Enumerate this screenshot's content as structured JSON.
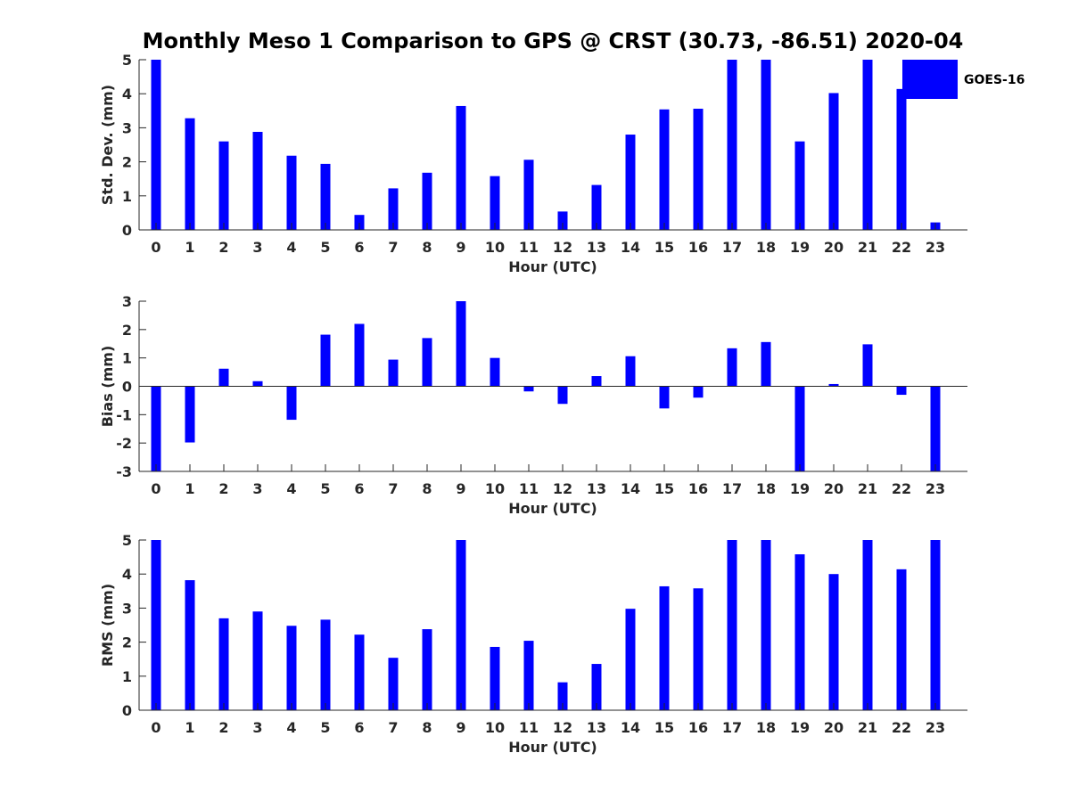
{
  "title": "Monthly Meso 1 Comparison to GPS @ CRST (30.73, -86.51) 2020-04",
  "legend": {
    "label": "GOES-16",
    "color": "#0000ff",
    "placement": "top-right"
  },
  "chart_data": [
    {
      "type": "bar",
      "xlabel": "Hour (UTC)",
      "ylabel": "Std. Dev. (mm)",
      "ylim": [
        0,
        5
      ],
      "yticks": [
        "0",
        "1",
        "2",
        "3",
        "4",
        "5"
      ],
      "categories": [
        "0",
        "1",
        "2",
        "3",
        "4",
        "5",
        "6",
        "7",
        "8",
        "9",
        "10",
        "11",
        "12",
        "13",
        "14",
        "15",
        "16",
        "17",
        "18",
        "19",
        "20",
        "21",
        "22",
        "23"
      ],
      "values": [
        5,
        3.28,
        2.6,
        2.88,
        2.18,
        1.94,
        0.44,
        1.22,
        1.68,
        3.64,
        1.58,
        2.06,
        0.54,
        1.32,
        2.8,
        3.54,
        3.56,
        5,
        5,
        2.6,
        4.02,
        5,
        4.14,
        0.22
      ],
      "color": "#0000ff"
    },
    {
      "type": "bar",
      "xlabel": "Hour (UTC)",
      "ylabel": "Bias (mm)",
      "ylim": [
        -3,
        3
      ],
      "yticks": [
        "-3",
        "-2",
        "-1",
        "0",
        "1",
        "2",
        "3"
      ],
      "categories": [
        "0",
        "1",
        "2",
        "3",
        "4",
        "5",
        "6",
        "7",
        "8",
        "9",
        "10",
        "11",
        "12",
        "13",
        "14",
        "15",
        "16",
        "17",
        "18",
        "19",
        "20",
        "21",
        "22",
        "23"
      ],
      "values": [
        -3,
        -1.98,
        0.62,
        0.18,
        -1.18,
        1.82,
        2.2,
        0.94,
        1.7,
        3,
        1,
        -0.18,
        -0.62,
        0.36,
        1.06,
        -0.78,
        -0.4,
        1.34,
        1.56,
        -3,
        0.08,
        1.48,
        -0.3,
        -3
      ],
      "color": "#0000ff"
    },
    {
      "type": "bar",
      "xlabel": "Hour (UTC)",
      "ylabel": "RMS (mm)",
      "ylim": [
        0,
        5
      ],
      "yticks": [
        "0",
        "1",
        "2",
        "3",
        "4",
        "5"
      ],
      "categories": [
        "0",
        "1",
        "2",
        "3",
        "4",
        "5",
        "6",
        "7",
        "8",
        "9",
        "10",
        "11",
        "12",
        "13",
        "14",
        "15",
        "16",
        "17",
        "18",
        "19",
        "20",
        "21",
        "22",
        "23"
      ],
      "values": [
        5,
        3.82,
        2.7,
        2.9,
        2.48,
        2.66,
        2.22,
        1.54,
        2.38,
        5,
        1.86,
        2.04,
        0.82,
        1.36,
        2.98,
        3.64,
        3.58,
        5,
        5,
        4.58,
        4,
        5,
        4.14,
        5
      ],
      "color": "#0000ff"
    }
  ]
}
